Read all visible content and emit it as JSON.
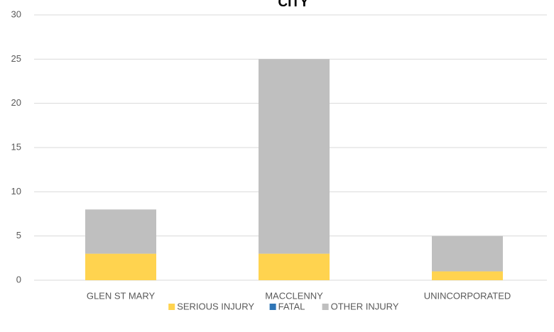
{
  "chart_data": {
    "type": "stacked_bar",
    "title": "CITY",
    "categories": [
      "GLEN ST MARY",
      "MACCLENNY",
      "UNINCORPORATED"
    ],
    "series": [
      {
        "name": "SERIOUS INJURY",
        "color": "#ffd34f",
        "values": [
          3,
          3,
          1
        ]
      },
      {
        "name": "FATAL",
        "color": "#2e75b6",
        "values": [
          0,
          0,
          0
        ]
      },
      {
        "name": "OTHER INJURY",
        "color": "#bfbfbf",
        "values": [
          5,
          22,
          4
        ]
      }
    ],
    "ylim": [
      0,
      30
    ],
    "yticks": [
      0,
      5,
      10,
      15,
      20,
      25,
      30
    ],
    "grid": true,
    "legend": "bottom"
  }
}
